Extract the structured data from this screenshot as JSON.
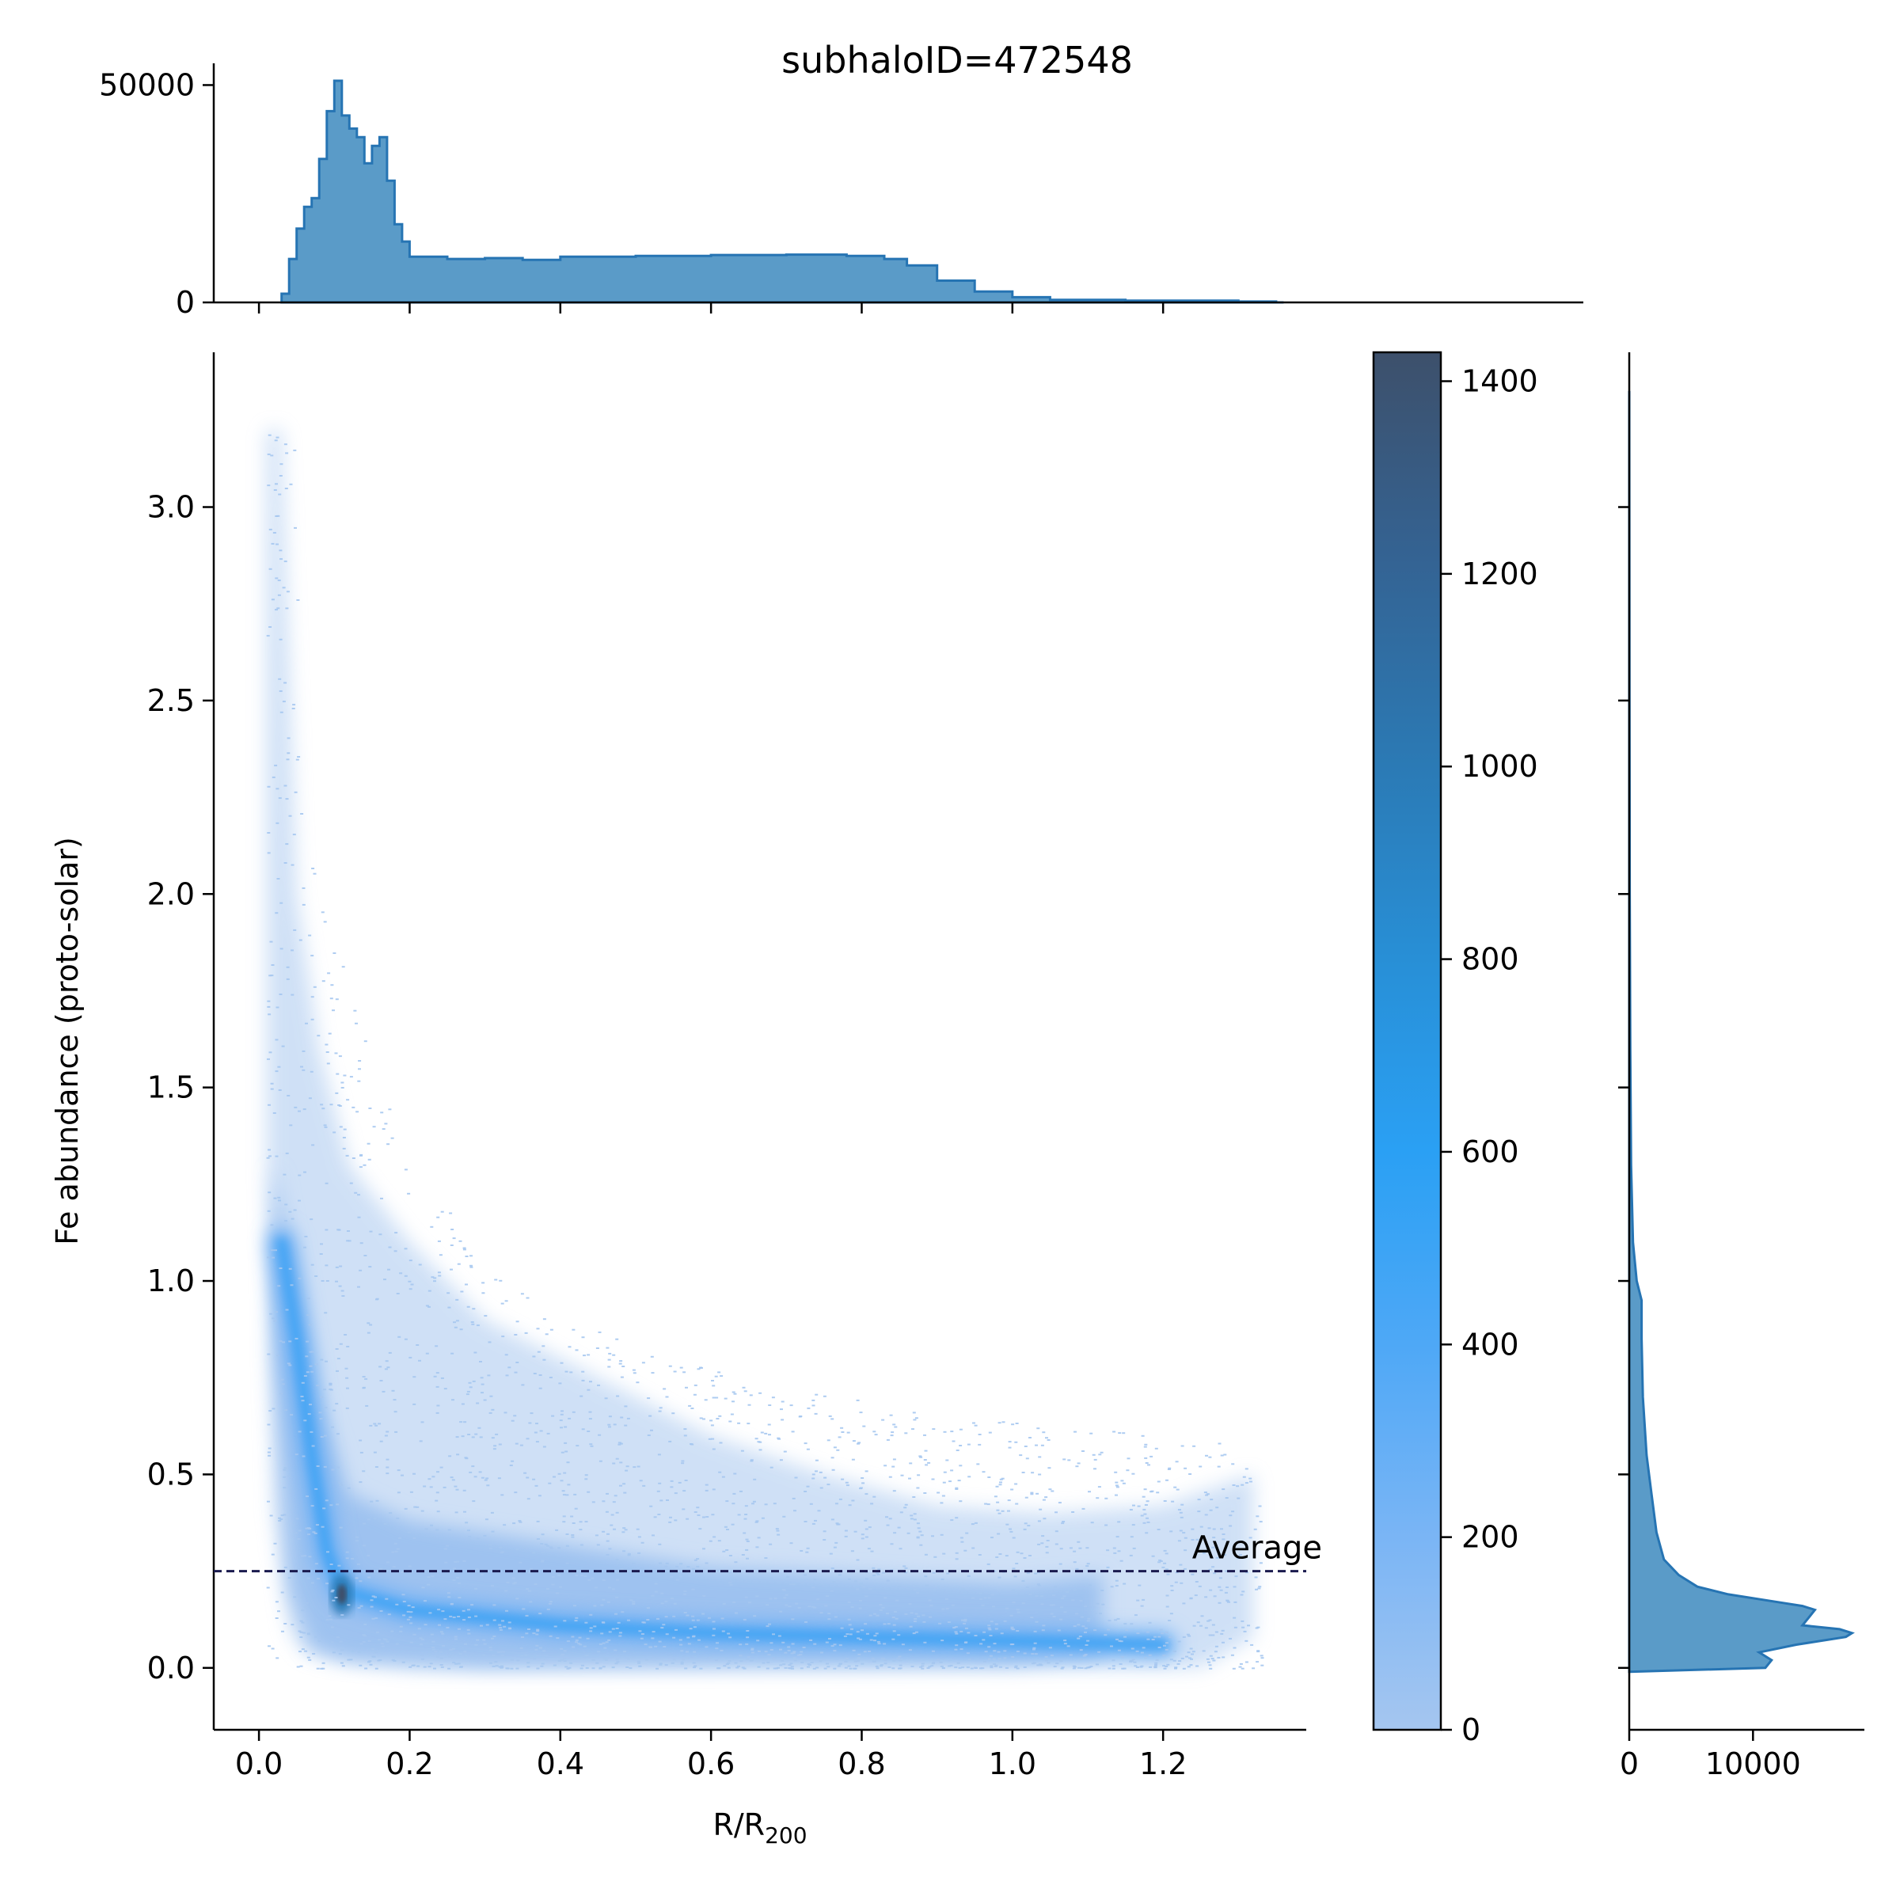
{
  "title": "subhaloID=472548",
  "chart_data": {
    "type": "heatmap",
    "title": "subhaloID=472548",
    "xlabel": "R/R",
    "xlabel_sub": "200",
    "ylabel": "Fe abundance (proto-solar)",
    "xlim": [
      -0.06,
      1.39
    ],
    "ylim": [
      -0.16,
      3.4
    ],
    "xticks": [
      "0.0",
      "0.2",
      "0.4",
      "0.6",
      "0.8",
      "1.0",
      "1.2"
    ],
    "yticks": [
      "0.0",
      "0.5",
      "1.0",
      "1.5",
      "2.0",
      "2.5",
      "3.0"
    ],
    "average_line": {
      "y": 0.25,
      "label": "Average",
      "color": "#1a1a4e"
    },
    "heatmap": {
      "description_density_ridge": [
        {
          "x": 0.03,
          "y": 1.1
        },
        {
          "x": 0.05,
          "y": 0.85
        },
        {
          "x": 0.07,
          "y": 0.55
        },
        {
          "x": 0.09,
          "y": 0.3
        },
        {
          "x": 0.11,
          "y": 0.2
        },
        {
          "x": 0.2,
          "y": 0.15
        },
        {
          "x": 0.4,
          "y": 0.11
        },
        {
          "x": 0.6,
          "y": 0.09
        },
        {
          "x": 0.8,
          "y": 0.08
        },
        {
          "x": 1.0,
          "y": 0.07
        },
        {
          "x": 1.2,
          "y": 0.06
        }
      ],
      "peak": {
        "x": 0.11,
        "y": 0.19,
        "count": 1430
      }
    },
    "colorbar": {
      "ticks": [
        "0",
        "200",
        "400",
        "600",
        "800",
        "1000",
        "1200",
        "1400"
      ],
      "min": 0,
      "max": 1430,
      "colors": [
        "#a5c6f0",
        "#7ab5f5",
        "#4ea8f6",
        "#2aa0f4",
        "#288fd6",
        "#2b7ab5",
        "#346393",
        "#3d506b"
      ]
    },
    "top_histogram": {
      "yticks": [
        "0",
        "50000"
      ],
      "ylim": [
        0,
        55000
      ],
      "color": "#2674b3",
      "fill": "#5a9bc8",
      "profile": [
        {
          "x": 0.03,
          "y": 2000
        },
        {
          "x": 0.04,
          "y": 10000
        },
        {
          "x": 0.05,
          "y": 17000
        },
        {
          "x": 0.06,
          "y": 22000
        },
        {
          "x": 0.07,
          "y": 24000
        },
        {
          "x": 0.08,
          "y": 33000
        },
        {
          "x": 0.09,
          "y": 44000
        },
        {
          "x": 0.1,
          "y": 51000
        },
        {
          "x": 0.11,
          "y": 43000
        },
        {
          "x": 0.12,
          "y": 40000
        },
        {
          "x": 0.13,
          "y": 38000
        },
        {
          "x": 0.14,
          "y": 32000
        },
        {
          "x": 0.15,
          "y": 36000
        },
        {
          "x": 0.16,
          "y": 38000
        },
        {
          "x": 0.17,
          "y": 28000
        },
        {
          "x": 0.18,
          "y": 18000
        },
        {
          "x": 0.19,
          "y": 14000
        },
        {
          "x": 0.2,
          "y": 10500
        },
        {
          "x": 0.25,
          "y": 10000
        },
        {
          "x": 0.3,
          "y": 10200
        },
        {
          "x": 0.35,
          "y": 9800
        },
        {
          "x": 0.4,
          "y": 10500
        },
        {
          "x": 0.5,
          "y": 10700
        },
        {
          "x": 0.6,
          "y": 10900
        },
        {
          "x": 0.7,
          "y": 11000
        },
        {
          "x": 0.78,
          "y": 10700
        },
        {
          "x": 0.83,
          "y": 10000
        },
        {
          "x": 0.86,
          "y": 8500
        },
        {
          "x": 0.9,
          "y": 5000
        },
        {
          "x": 0.95,
          "y": 2500
        },
        {
          "x": 1.0,
          "y": 1200
        },
        {
          "x": 1.05,
          "y": 600
        },
        {
          "x": 1.15,
          "y": 400
        },
        {
          "x": 1.3,
          "y": 200
        },
        {
          "x": 1.35,
          "y": 0
        }
      ]
    },
    "right_histogram": {
      "xticks": [
        "0",
        "10000"
      ],
      "xlim": [
        0,
        19000
      ],
      "color": "#2674b3",
      "fill": "#5a9bc8",
      "profile": [
        {
          "y": -0.01,
          "x": 0
        },
        {
          "y": 0.0,
          "x": 11000
        },
        {
          "y": 0.02,
          "x": 11500
        },
        {
          "y": 0.04,
          "x": 10500
        },
        {
          "y": 0.06,
          "x": 13500
        },
        {
          "y": 0.08,
          "x": 17500
        },
        {
          "y": 0.09,
          "x": 18000
        },
        {
          "y": 0.1,
          "x": 17000
        },
        {
          "y": 0.11,
          "x": 14000
        },
        {
          "y": 0.13,
          "x": 14500
        },
        {
          "y": 0.15,
          "x": 15000
        },
        {
          "y": 0.16,
          "x": 14000
        },
        {
          "y": 0.17,
          "x": 12000
        },
        {
          "y": 0.19,
          "x": 8000
        },
        {
          "y": 0.21,
          "x": 5500
        },
        {
          "y": 0.24,
          "x": 4000
        },
        {
          "y": 0.28,
          "x": 2800
        },
        {
          "y": 0.35,
          "x": 2200
        },
        {
          "y": 0.45,
          "x": 1800
        },
        {
          "y": 0.55,
          "x": 1400
        },
        {
          "y": 0.7,
          "x": 1100
        },
        {
          "y": 0.85,
          "x": 1000
        },
        {
          "y": 0.95,
          "x": 1000
        },
        {
          "y": 1.0,
          "x": 600
        },
        {
          "y": 1.1,
          "x": 300
        },
        {
          "y": 1.3,
          "x": 150
        },
        {
          "y": 1.6,
          "x": 80
        },
        {
          "y": 2.0,
          "x": 40
        },
        {
          "y": 2.5,
          "x": 20
        },
        {
          "y": 3.3,
          "x": 0
        }
      ]
    }
  }
}
